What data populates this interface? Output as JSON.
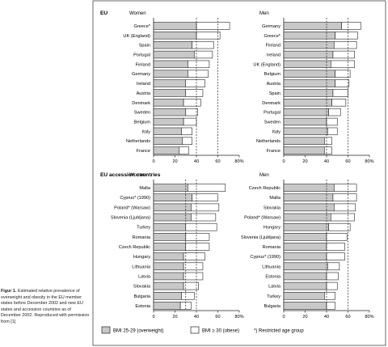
{
  "caption": {
    "label": "Figur 1.",
    "text": "Estimated relative prevalence of overweight and obesity in the EU member states before December 2002 and new EU states and accession countries as of December 2002. Reproduced with permission from [1]"
  },
  "legend": {
    "overweight_label": "BMI 25-29 (overweight)",
    "obese_label": "BMI ≥ 30 (obese)",
    "restricted_label": "*) Restricted age group"
  },
  "colors": {
    "overweight": "#c8c8c8",
    "obese": "#ffffff",
    "stroke": "#222222"
  },
  "chart_data": [
    {
      "type": "bar",
      "orientation": "horizontal",
      "stacked": true,
      "section": "EU",
      "title": "Women",
      "xlim": [
        0,
        80
      ],
      "ticks": [
        "0",
        "20",
        "40",
        "60",
        "80%"
      ],
      "reference_lines": [
        40,
        60
      ],
      "categories": [
        "Greece*",
        "UK (England)",
        "Spain",
        "Portugal",
        "Finland",
        "Germany",
        "Ireland",
        "Austria",
        "Denmark",
        "Sweden",
        "Belgium",
        "Italy",
        "Netherlands",
        "France"
      ],
      "series": [
        {
          "name": "BMI 25-29 (overweight)",
          "values": [
            40,
            40,
            36,
            38,
            32,
            32,
            30,
            30,
            28,
            30,
            28,
            26,
            27,
            24
          ]
        },
        {
          "name": "BMI ≥ 30 (obese)",
          "values": [
            31,
            22,
            20,
            17,
            20,
            19,
            18,
            16,
            16,
            11,
            12,
            10,
            9,
            9
          ]
        }
      ]
    },
    {
      "type": "bar",
      "orientation": "horizontal",
      "stacked": true,
      "section": "EU",
      "title": "Men",
      "xlim": [
        0,
        80
      ],
      "ticks": [
        "0",
        "20",
        "40",
        "60",
        "80%"
      ],
      "reference_lines": [
        40,
        60
      ],
      "categories": [
        "Germany",
        "Greece*",
        "Finland",
        "Ireland",
        "UK (England)",
        "Belgium",
        "Austria",
        "Spain",
        "Denmark",
        "Portugal",
        "Sweden",
        "Italy",
        "Netherlands",
        "France"
      ],
      "series": [
        {
          "name": "BMI 25-29 (overweight)",
          "values": [
            54,
            48,
            47,
            46,
            44,
            48,
            48,
            46,
            45,
            42,
            40,
            41,
            38,
            38
          ]
        },
        {
          "name": "BMI ≥ 30 (obese)",
          "values": [
            18,
            21,
            21,
            20,
            22,
            14,
            13,
            14,
            13,
            11,
            10,
            9,
            7,
            7
          ]
        }
      ]
    },
    {
      "type": "bar",
      "orientation": "horizontal",
      "stacked": true,
      "section": "EU accession countries",
      "title": "Women",
      "xlim": [
        0,
        80
      ],
      "ticks": [
        "0",
        "20",
        "40",
        "60",
        "80%"
      ],
      "reference_lines": [
        30,
        40
      ],
      "categories": [
        "Malta",
        "Cyprus* (1990)",
        "Poland* (Warsaw)",
        "Slovenia (Ljubljana)",
        "Turkey",
        "Romania",
        "Czech Republic",
        "Hungary",
        "Lithuania",
        "Latvia",
        "Slovakia",
        "Bulgaria",
        "Estonia"
      ],
      "series": [
        {
          "name": "BMI 25-29 (overweight)",
          "values": [
            32,
            36,
            35,
            35,
            30,
            30,
            30,
            28,
            28,
            28,
            28,
            26,
            25
          ]
        },
        {
          "name": "BMI ≥ 30 (obese)",
          "values": [
            35,
            24,
            26,
            23,
            29,
            22,
            22,
            20,
            18,
            18,
            14,
            12,
            10
          ]
        }
      ]
    },
    {
      "type": "bar",
      "orientation": "horizontal",
      "stacked": true,
      "section": "EU accession countries",
      "title": "Men",
      "xlim": [
        0,
        80
      ],
      "ticks": [
        "0",
        "20",
        "40",
        "60",
        "80%"
      ],
      "reference_lines": [
        40,
        60
      ],
      "categories": [
        "Czech Republic",
        "Malta",
        "Slovakia",
        "Poland* (Warsaw)",
        "Hungary",
        "Slovenia (Ljubljana)",
        "Romania",
        "Cyprus* (1990)",
        "Lithuania",
        "Estonia",
        "Latvia",
        "Turkey",
        "Bulgaria"
      ],
      "series": [
        {
          "name": "BMI 25-29 (overweight)",
          "values": [
            47,
            46,
            47,
            44,
            42,
            40,
            40,
            40,
            41,
            40,
            40,
            38,
            40
          ]
        },
        {
          "name": "BMI ≥ 30 (obese)",
          "values": [
            21,
            22,
            20,
            22,
            20,
            19,
            17,
            17,
            11,
            11,
            10,
            10,
            8
          ]
        }
      ]
    }
  ]
}
